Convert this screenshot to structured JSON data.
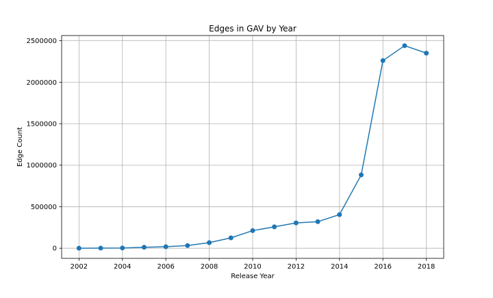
{
  "chart_data": {
    "type": "line",
    "title": "Edges in GAV by Year",
    "xlabel": "Release Year",
    "ylabel": "Edge Count",
    "x": [
      2002,
      2003,
      2004,
      2005,
      2006,
      2007,
      2008,
      2009,
      2010,
      2011,
      2012,
      2013,
      2014,
      2015,
      2016,
      2017,
      2018
    ],
    "series": [
      {
        "values": [
          0,
          1000,
          3000,
          12000,
          18000,
          32000,
          67000,
          125000,
          212000,
          258000,
          305000,
          320000,
          405000,
          883000,
          2260000,
          2440000,
          2350000
        ],
        "color": "#1f77b4",
        "marker": "circle"
      }
    ],
    "xlim": [
      2001.2,
      2018.8
    ],
    "ylim": [
      -122000,
      2562000
    ],
    "xticks": [
      2002,
      2004,
      2006,
      2008,
      2010,
      2012,
      2014,
      2016,
      2018
    ],
    "yticks": [
      0,
      500000,
      1000000,
      1500000,
      2000000,
      2500000
    ],
    "xtick_labels": [
      "2002",
      "2004",
      "2006",
      "2008",
      "2010",
      "2012",
      "2014",
      "2016",
      "2018"
    ],
    "ytick_labels": [
      "0",
      "500000",
      "1000000",
      "1500000",
      "2000000",
      "2500000"
    ],
    "grid": true,
    "legend": false
  }
}
